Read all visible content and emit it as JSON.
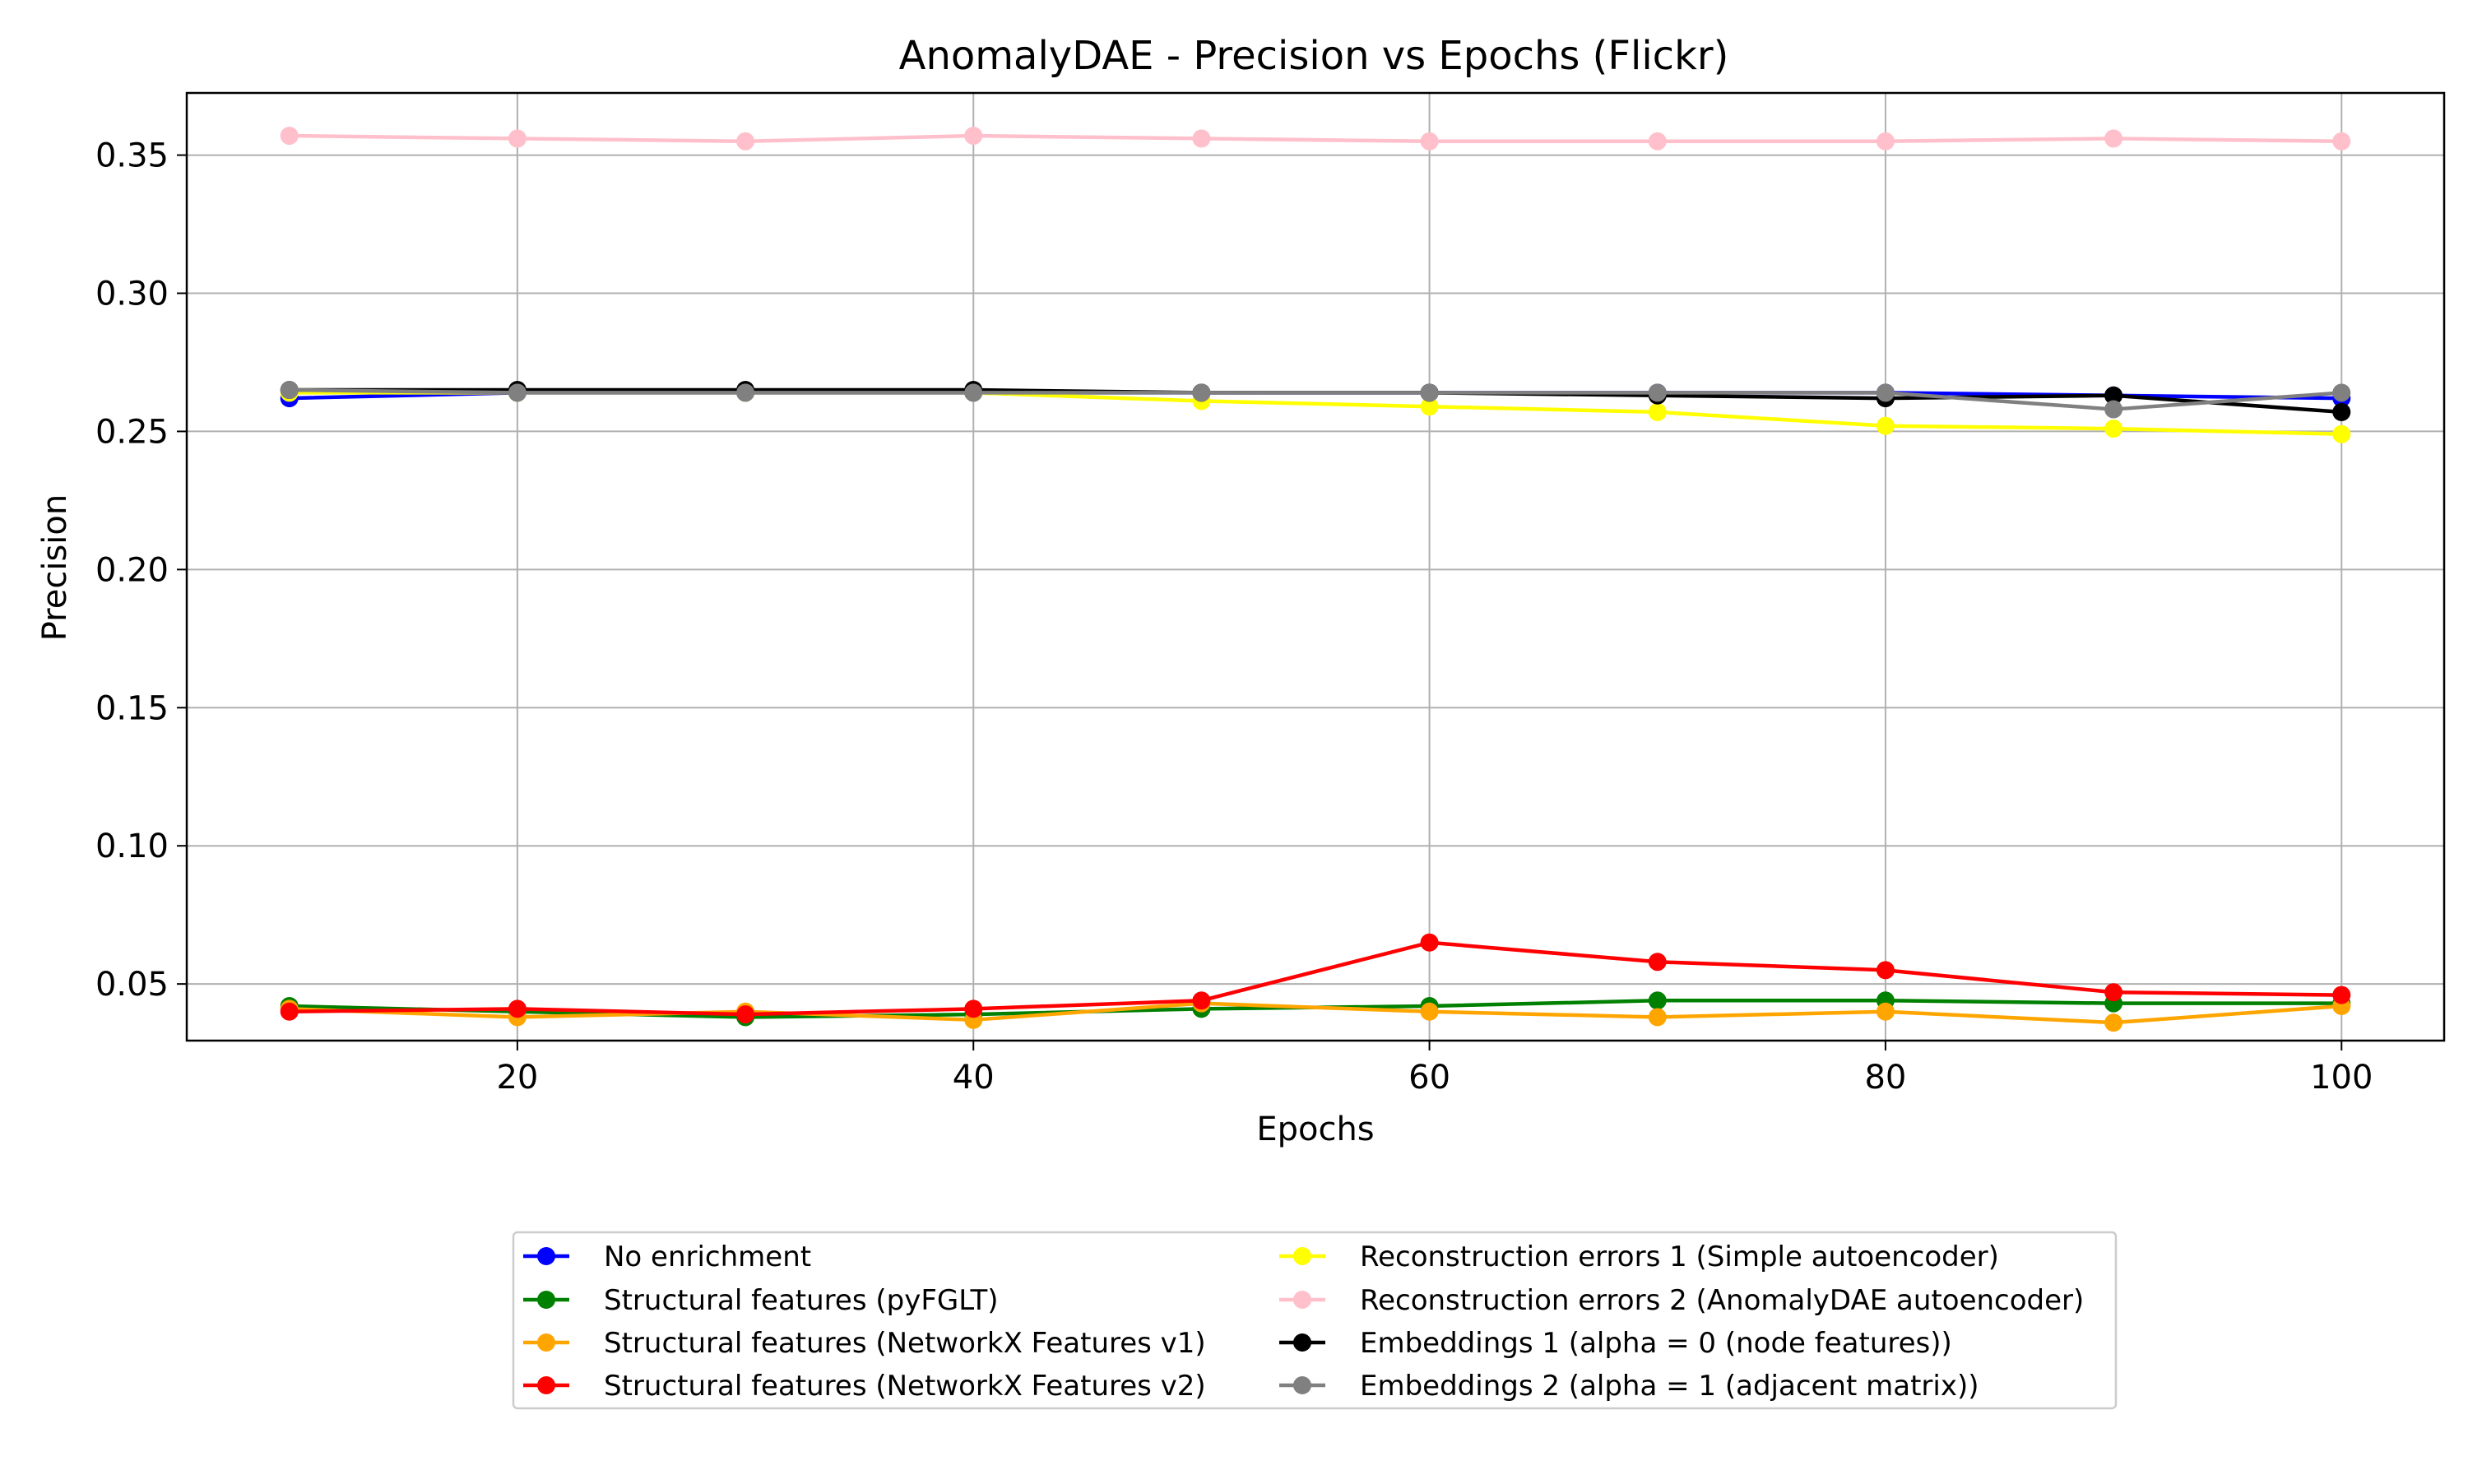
{
  "chart_data": {
    "type": "line",
    "title": "AnomalyDAE - Precision vs Epochs (Flickr)",
    "xlabel": "Epochs",
    "ylabel": "Precision",
    "xlim": [
      5.5,
      104.5
    ],
    "ylim": [
      0.0295,
      0.3725
    ],
    "xticks": [
      20,
      40,
      60,
      80,
      100
    ],
    "xtick_labels": [
      "20",
      "40",
      "60",
      "80",
      "100"
    ],
    "yticks": [
      0.05,
      0.1,
      0.15,
      0.2,
      0.25,
      0.3,
      0.35
    ],
    "ytick_labels": [
      "0.05",
      "0.10",
      "0.15",
      "0.20",
      "0.25",
      "0.30",
      "0.35"
    ],
    "grid": true,
    "legend_position": "below plot, two columns",
    "x": [
      10,
      20,
      30,
      40,
      50,
      60,
      70,
      80,
      90,
      100
    ],
    "series": [
      {
        "name": "No enrichment",
        "color": "#0000ff",
        "values": [
          0.262,
          0.264,
          0.264,
          0.264,
          0.264,
          0.264,
          0.264,
          0.264,
          0.263,
          0.262
        ]
      },
      {
        "name": "Structural features (pyFGLT)",
        "color": "#008000",
        "values": [
          0.042,
          0.04,
          0.038,
          0.039,
          0.041,
          0.042,
          0.044,
          0.044,
          0.043,
          0.043
        ]
      },
      {
        "name": "Structural features (NetworkX Features v1)",
        "color": "#ffa500",
        "values": [
          0.041,
          0.038,
          0.04,
          0.037,
          0.043,
          0.04,
          0.038,
          0.04,
          0.036,
          0.042
        ]
      },
      {
        "name": "Structural features (NetworkX Features v2)",
        "color": "#ff0000",
        "values": [
          0.04,
          0.041,
          0.039,
          0.041,
          0.044,
          0.065,
          0.058,
          0.055,
          0.047,
          0.046
        ]
      },
      {
        "name": "Reconstruction errors 1 (Simple autoencoder)",
        "color": "#ffff00",
        "values": [
          0.264,
          0.264,
          0.264,
          0.264,
          0.261,
          0.259,
          0.257,
          0.252,
          0.251,
          0.249
        ]
      },
      {
        "name": "Reconstruction errors 2 (AnomalyDAE autoencoder)",
        "color": "#ffc0cb",
        "values": [
          0.357,
          0.356,
          0.355,
          0.357,
          0.356,
          0.355,
          0.355,
          0.355,
          0.356,
          0.355
        ]
      },
      {
        "name": "Embeddings 1 (alpha = 0 (node features))",
        "color": "#000000",
        "values": [
          0.265,
          0.265,
          0.265,
          0.265,
          0.264,
          0.264,
          0.263,
          0.262,
          0.263,
          0.257
        ]
      },
      {
        "name": "Embeddings 2 (alpha = 1 (adjacent matrix))",
        "color": "#808080",
        "values": [
          0.265,
          0.264,
          0.264,
          0.264,
          0.264,
          0.264,
          0.264,
          0.264,
          0.258,
          0.264
        ]
      }
    ]
  }
}
